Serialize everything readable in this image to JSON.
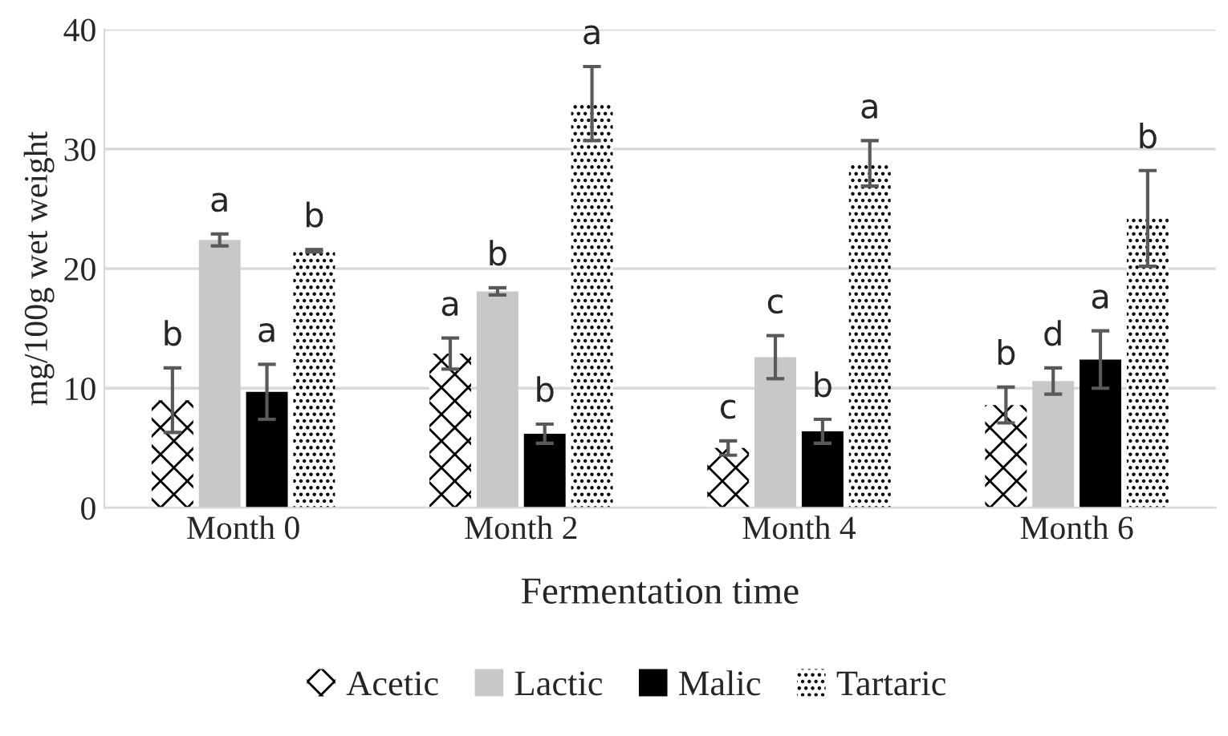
{
  "chart_data": {
    "type": "bar",
    "xlabel": "Fermentation time",
    "ylabel": "mg/100g wet weight",
    "categories": [
      "Month 0",
      "Month 2",
      "Month 4",
      "Month 6"
    ],
    "series": [
      {
        "name": "Acetic",
        "color": "#000000",
        "values": [
          9.0,
          12.9,
          5.0,
          8.6
        ],
        "errors": [
          2.7,
          1.3,
          0.6,
          1.5
        ],
        "value_labels": [
          "b",
          "a",
          "c",
          "b"
        ]
      },
      {
        "name": "Lactic",
        "color": "#c8c8c8",
        "values": [
          22.4,
          18.1,
          12.6,
          10.6
        ],
        "errors": [
          0.5,
          0.3,
          1.8,
          1.1
        ],
        "value_labels": [
          "a",
          "b",
          "c",
          "d"
        ]
      },
      {
        "name": "Malic",
        "color": "#000000",
        "values": [
          9.7,
          6.2,
          6.4,
          12.4
        ],
        "errors": [
          2.3,
          0.8,
          1.0,
          2.4
        ],
        "value_labels": [
          "a",
          "b",
          "b",
          "a"
        ]
      },
      {
        "name": "Tartaric",
        "color": "#000000",
        "values": [
          21.5,
          33.8,
          28.8,
          24.2
        ],
        "errors": [
          0.1,
          3.1,
          1.9,
          4.0
        ],
        "value_labels": [
          "b",
          "a",
          "a",
          "b"
        ]
      }
    ],
    "ylim": [
      0,
      40
    ],
    "yticks": [
      0,
      10,
      20,
      30,
      40
    ],
    "grid": "y",
    "legend": "bottom"
  }
}
